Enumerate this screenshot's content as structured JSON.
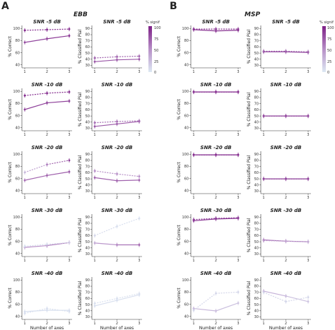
{
  "panel_labels": [
    "A",
    "B"
  ],
  "group_titles": [
    "EBB",
    "MSP"
  ],
  "colorbar": {
    "title": "% signif",
    "ticks": [
      "100",
      "75",
      "50",
      "25",
      "0"
    ],
    "low": "#dde9f3",
    "high": "#7d1f86"
  },
  "colors": {
    "accent": "#a640a8",
    "light": "#c9dbea",
    "axis": "#333333"
  },
  "xlabel": "Number of axes",
  "ylabel_correct": "% Correct",
  "ylabel_pial": "% Classified Pial",
  "chart_data": [
    {
      "panel": "A",
      "column": "correct",
      "title": "SNR -5 dB",
      "type": "line",
      "x": [
        1,
        2,
        3
      ],
      "yticks": [
        "40",
        "60",
        "80",
        "100"
      ],
      "ylim": [
        35,
        105
      ],
      "series": [
        {
          "style": "solid",
          "values": [
            77,
            83,
            88
          ],
          "signif": [
            80,
            85,
            90
          ]
        },
        {
          "style": "dashed",
          "values": [
            97,
            98,
            99
          ],
          "signif": [
            95,
            95,
            95
          ]
        }
      ]
    },
    {
      "panel": "A",
      "column": "pial",
      "title": "SNR -5 dB",
      "type": "line",
      "x": [
        1,
        2,
        3
      ],
      "yticks": [
        "30",
        "40",
        "50",
        "60",
        "70",
        "80",
        "90"
      ],
      "ylim": [
        26,
        95
      ],
      "series": [
        {
          "style": "solid",
          "values": [
            36,
            39,
            40
          ],
          "signif": [
            75,
            75,
            75
          ]
        },
        {
          "style": "dashed",
          "values": [
            42,
            44,
            45
          ],
          "signif": [
            70,
            70,
            70
          ]
        }
      ]
    },
    {
      "panel": "A",
      "column": "correct",
      "title": "SNR -10 dB",
      "type": "line",
      "x": [
        1,
        2,
        3
      ],
      "yticks": [
        "40",
        "60",
        "80",
        "100"
      ],
      "ylim": [
        35,
        105
      ],
      "series": [
        {
          "style": "solid",
          "values": [
            70,
            81,
            84
          ],
          "signif": [
            85,
            85,
            85
          ]
        },
        {
          "style": "dashed",
          "values": [
            93,
            97,
            99
          ],
          "signif": [
            95,
            95,
            95
          ]
        }
      ]
    },
    {
      "panel": "A",
      "column": "pial",
      "title": "SNR -10 dB",
      "type": "line",
      "x": [
        1,
        2,
        3
      ],
      "yticks": [
        "30",
        "40",
        "50",
        "60",
        "70",
        "80",
        "90"
      ],
      "ylim": [
        26,
        95
      ],
      "series": [
        {
          "style": "solid",
          "values": [
            33,
            37,
            41
          ],
          "signif": [
            75,
            75,
            75
          ]
        },
        {
          "style": "dashed",
          "values": [
            39,
            41,
            42
          ],
          "signif": [
            65,
            65,
            65
          ]
        }
      ]
    },
    {
      "panel": "A",
      "column": "correct",
      "title": "SNR -20 dB",
      "type": "line",
      "x": [
        1,
        2,
        3
      ],
      "yticks": [
        "40",
        "60",
        "80",
        "100"
      ],
      "ylim": [
        35,
        105
      ],
      "series": [
        {
          "style": "solid",
          "values": [
            57,
            65,
            71
          ],
          "signif": [
            65,
            70,
            75
          ]
        },
        {
          "style": "dashed",
          "values": [
            70,
            83,
            90
          ],
          "signif": [
            25,
            55,
            85
          ]
        }
      ]
    },
    {
      "panel": "A",
      "column": "pial",
      "title": "SNR -20 dB",
      "type": "line",
      "x": [
        1,
        2,
        3
      ],
      "yticks": [
        "30",
        "40",
        "50",
        "60",
        "70",
        "80",
        "90"
      ],
      "ylim": [
        26,
        95
      ],
      "series": [
        {
          "style": "solid",
          "values": [
            52,
            47,
            48
          ],
          "signif": [
            70,
            70,
            70
          ]
        },
        {
          "style": "dashed",
          "values": [
            63,
            58,
            54
          ],
          "signif": [
            50,
            50,
            50
          ]
        }
      ]
    },
    {
      "panel": "A",
      "column": "correct",
      "title": "SNR -30 dB",
      "type": "line",
      "x": [
        1,
        2,
        3
      ],
      "yticks": [
        "40",
        "60",
        "80",
        "100"
      ],
      "ylim": [
        35,
        105
      ],
      "series": [
        {
          "style": "solid",
          "values": [
            50,
            53,
            58
          ],
          "signif": [
            45,
            55,
            65
          ]
        },
        {
          "style": "dashed",
          "values": [
            52,
            55,
            58
          ],
          "signif": [
            5,
            10,
            15
          ]
        }
      ]
    },
    {
      "panel": "A",
      "column": "pial",
      "title": "SNR -30 dB",
      "type": "line",
      "x": [
        1,
        2,
        3
      ],
      "yticks": [
        "30",
        "40",
        "50",
        "60",
        "70",
        "80",
        "90"
      ],
      "ylim": [
        26,
        95
      ],
      "series": [
        {
          "style": "solid",
          "values": [
            48,
            45,
            45
          ],
          "signif": [
            35,
            55,
            70
          ]
        },
        {
          "style": "dashed",
          "values": [
            60,
            75,
            88
          ],
          "signif": [
            10,
            5,
            5
          ]
        }
      ]
    },
    {
      "panel": "A",
      "column": "correct",
      "title": "SNR -40 dB",
      "type": "line",
      "x": [
        1,
        2,
        3
      ],
      "yticks": [
        "40",
        "60",
        "80",
        "100"
      ],
      "ylim": [
        35,
        105
      ],
      "series": [
        {
          "style": "solid",
          "values": [
            48,
            50,
            50
          ],
          "signif": [
            5,
            5,
            5
          ]
        },
        {
          "style": "dashed",
          "values": [
            45,
            53,
            48
          ],
          "signif": [
            5,
            5,
            5
          ]
        }
      ]
    },
    {
      "panel": "A",
      "column": "pial",
      "title": "SNR -40 dB",
      "type": "line",
      "x": [
        1,
        2,
        3
      ],
      "yticks": [
        "30",
        "40",
        "50",
        "60",
        "70",
        "80",
        "90"
      ],
      "ylim": [
        26,
        95
      ],
      "series": [
        {
          "style": "solid",
          "values": [
            48,
            57,
            66
          ],
          "signif": [
            5,
            5,
            5
          ]
        },
        {
          "style": "dashed",
          "values": [
            52,
            60,
            68
          ],
          "signif": [
            5,
            5,
            5
          ]
        }
      ]
    },
    {
      "panel": "B",
      "column": "correct",
      "title": "SNR -5 dB",
      "type": "line",
      "x": [
        1,
        2,
        3
      ],
      "yticks": [
        "40",
        "60",
        "80",
        "100"
      ],
      "ylim": [
        35,
        105
      ],
      "series": [
        {
          "style": "solid",
          "values": [
            98,
            96,
            97
          ],
          "signif": [
            90,
            90,
            90
          ]
        },
        {
          "style": "dashed",
          "values": [
            99,
            99,
            99
          ],
          "signif": [
            90,
            90,
            90
          ]
        }
      ]
    },
    {
      "panel": "B",
      "column": "pial",
      "title": "SNR -5 dB",
      "type": "line",
      "x": [
        1,
        2,
        3
      ],
      "yticks": [
        "30",
        "40",
        "50",
        "60",
        "70",
        "80",
        "90"
      ],
      "ylim": [
        26,
        95
      ],
      "series": [
        {
          "style": "solid",
          "values": [
            52,
            52,
            51
          ],
          "signif": [
            80,
            80,
            80
          ]
        },
        {
          "style": "dashed",
          "values": [
            53,
            53,
            52
          ],
          "signif": [
            70,
            70,
            70
          ]
        }
      ]
    },
    {
      "panel": "B",
      "column": "correct",
      "title": "SNR -10 dB",
      "type": "line",
      "x": [
        1,
        2,
        3
      ],
      "yticks": [
        "40",
        "60",
        "80",
        "100"
      ],
      "ylim": [
        35,
        105
      ],
      "series": [
        {
          "style": "solid",
          "values": [
            99,
            99,
            99
          ],
          "signif": [
            95,
            95,
            95
          ]
        },
        {
          "style": "dashed",
          "values": [
            99,
            99,
            99
          ],
          "signif": [
            95,
            95,
            95
          ]
        }
      ]
    },
    {
      "panel": "B",
      "column": "pial",
      "title": "SNR -10 dB",
      "type": "line",
      "x": [
        1,
        2,
        3
      ],
      "yticks": [
        "30",
        "40",
        "50",
        "60",
        "70",
        "80",
        "90"
      ],
      "ylim": [
        26,
        95
      ],
      "series": [
        {
          "style": "solid",
          "values": [
            50,
            50,
            50
          ],
          "signif": [
            85,
            85,
            85
          ]
        },
        {
          "style": "dashed",
          "values": [
            50,
            50,
            50
          ],
          "signif": [
            85,
            85,
            85
          ]
        }
      ]
    },
    {
      "panel": "B",
      "column": "correct",
      "title": "SNR -20 dB",
      "type": "line",
      "x": [
        1,
        2,
        3
      ],
      "yticks": [
        "40",
        "60",
        "80",
        "100"
      ],
      "ylim": [
        35,
        105
      ],
      "series": [
        {
          "style": "solid",
          "values": [
            99,
            99,
            99
          ],
          "signif": [
            95,
            95,
            95
          ]
        },
        {
          "style": "dashed",
          "values": [
            99,
            99,
            99
          ],
          "signif": [
            95,
            95,
            95
          ]
        }
      ]
    },
    {
      "panel": "B",
      "column": "pial",
      "title": "SNR -20 dB",
      "type": "line",
      "x": [
        1,
        2,
        3
      ],
      "yticks": [
        "30",
        "40",
        "50",
        "60",
        "70",
        "80",
        "90"
      ],
      "ylim": [
        26,
        95
      ],
      "series": [
        {
          "style": "solid",
          "values": [
            50,
            50,
            50
          ],
          "signif": [
            85,
            85,
            85
          ]
        },
        {
          "style": "dashed",
          "values": [
            50,
            50,
            50
          ],
          "signif": [
            85,
            85,
            85
          ]
        }
      ]
    },
    {
      "panel": "B",
      "column": "correct",
      "title": "SNR -30 dB",
      "type": "line",
      "x": [
        1,
        2,
        3
      ],
      "yticks": [
        "40",
        "60",
        "80",
        "100"
      ],
      "ylim": [
        35,
        105
      ],
      "series": [
        {
          "style": "solid",
          "values": [
            94,
            97,
            98
          ],
          "signif": [
            90,
            90,
            90
          ]
        },
        {
          "style": "dashed",
          "values": [
            96,
            98,
            99
          ],
          "signif": [
            85,
            85,
            85
          ]
        }
      ]
    },
    {
      "panel": "B",
      "column": "pial",
      "title": "SNR -30 dB",
      "type": "line",
      "x": [
        1,
        2,
        3
      ],
      "yticks": [
        "30",
        "40",
        "50",
        "60",
        "70",
        "80",
        "90"
      ],
      "ylim": [
        26,
        95
      ],
      "series": [
        {
          "style": "solid",
          "values": [
            53,
            51,
            50
          ],
          "signif": [
            65,
            60,
            55
          ]
        },
        {
          "style": "dashed",
          "values": [
            52,
            51,
            50
          ],
          "signif": [
            45,
            40,
            35
          ]
        }
      ]
    },
    {
      "panel": "B",
      "column": "correct",
      "title": "SNR -40 dB",
      "type": "line",
      "x": [
        1,
        2,
        3
      ],
      "yticks": [
        "40",
        "60",
        "80",
        "100"
      ],
      "ylim": [
        35,
        105
      ],
      "series": [
        {
          "style": "solid",
          "values": [
            53,
            49,
            62
          ],
          "signif": [
            30,
            25,
            20
          ]
        },
        {
          "style": "dashed",
          "values": [
            50,
            78,
            80
          ],
          "signif": [
            10,
            10,
            10
          ]
        }
      ]
    },
    {
      "panel": "B",
      "column": "pial",
      "title": "SNR -40 dB",
      "type": "line",
      "x": [
        1,
        2,
        3
      ],
      "yticks": [
        "30",
        "40",
        "50",
        "60",
        "70",
        "80",
        "90"
      ],
      "ylim": [
        26,
        95
      ],
      "series": [
        {
          "style": "solid",
          "values": [
            72,
            64,
            55
          ],
          "signif": [
            35,
            25,
            20
          ]
        },
        {
          "style": "dashed",
          "values": [
            70,
            55,
            62
          ],
          "signif": [
            10,
            10,
            10
          ]
        }
      ]
    }
  ]
}
